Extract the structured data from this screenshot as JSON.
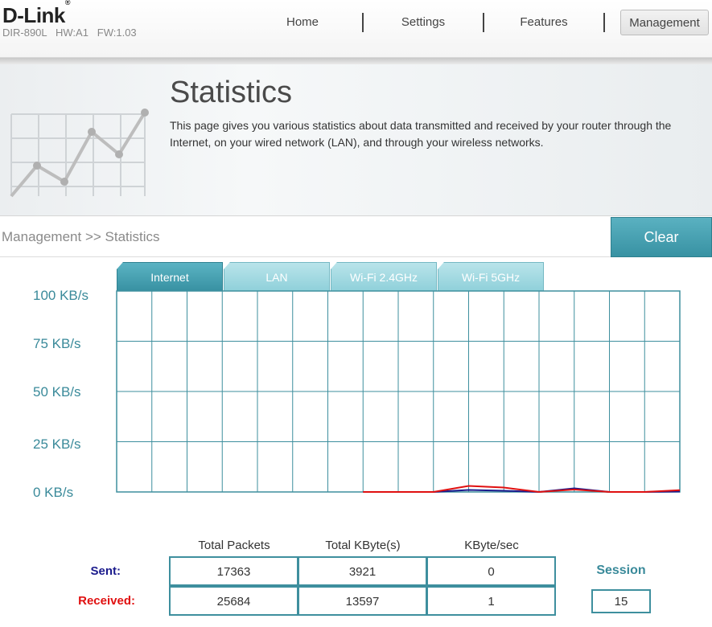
{
  "header": {
    "brand": "D-Link",
    "brand_mark": "®",
    "model_line": "DIR-890L   HW:A1   FW:1.03",
    "nav": [
      {
        "label": "Home"
      },
      {
        "label": "Settings"
      },
      {
        "label": "Features"
      },
      {
        "label": "Management"
      }
    ],
    "active_nav": "Management"
  },
  "hero": {
    "title": "Statistics",
    "description": "This page gives you various statistics about data transmitted and received by your router through the Internet, on your wired network (LAN), and through your wireless networks.",
    "icon": "line-chart-icon"
  },
  "breadcrumb": "Management >> Statistics",
  "clear_button": "Clear",
  "tabs": [
    {
      "label": "Internet",
      "active": true
    },
    {
      "label": "LAN",
      "active": false
    },
    {
      "label": "Wi-Fi 2.4GHz",
      "active": false
    },
    {
      "label": "Wi-Fi 5GHz",
      "active": false
    }
  ],
  "chart_data": {
    "type": "line",
    "y_ticks": [
      "100 KB/s",
      "75 KB/s",
      "50 KB/s",
      "25 KB/s",
      "0 KB/s"
    ],
    "ylim": [
      0,
      100
    ],
    "grid": true,
    "x": [
      7,
      8,
      9,
      10,
      11,
      12,
      13,
      14,
      15,
      16
    ],
    "series": [
      {
        "color": "#1a1a8c",
        "values": [
          0,
          0,
          0,
          1.0,
          0.6,
          0,
          1.8,
          0,
          0,
          0.2
        ]
      },
      {
        "color": "#e01010",
        "values": [
          0,
          0,
          0,
          3.0,
          2.2,
          0,
          1.2,
          0,
          0,
          0.9
        ]
      }
    ],
    "colors": {
      "grid": "#3e8f9e",
      "label": "#3a8a9a"
    }
  },
  "stats": {
    "columns": [
      "Total Packets",
      "Total KByte(s)",
      "KByte/sec"
    ],
    "rows": [
      {
        "label": "Sent:",
        "color": "#1a1a8c",
        "values": [
          "17363",
          "3921",
          "0"
        ]
      },
      {
        "label": "Received:",
        "color": "#e01010",
        "values": [
          "25684",
          "13597",
          "1"
        ]
      }
    ],
    "session_label": "Session",
    "session_value": "15"
  }
}
